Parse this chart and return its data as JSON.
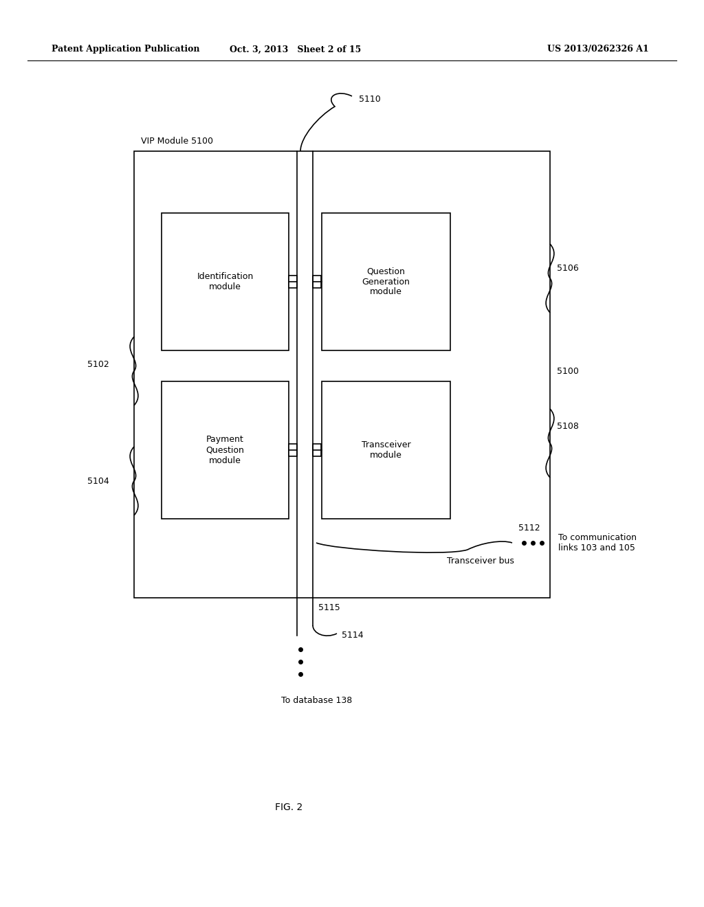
{
  "header_left": "Patent Application Publication",
  "header_mid": "Oct. 3, 2013   Sheet 2 of 15",
  "header_right": "US 2013/0262326 A1",
  "fig_label": "FIG. 2",
  "bg_color": "#ffffff",
  "line_color": "#000000",
  "label_vip": "VIP Module 5100",
  "label_5100": "5100",
  "label_5102": "5102",
  "label_5104": "5104",
  "label_5106": "5106",
  "label_5108": "5108",
  "label_5110": "5110",
  "label_5112": "5112",
  "label_5114": "5114",
  "label_5115": "5115",
  "label_transceiver_bus": "Transceiver bus",
  "label_comm_links": "To communication\nlinks 103 and 105",
  "label_database": "To database 138",
  "text_id": "Identification\nmodule",
  "text_pq": "Payment\nQuestion\nmodule",
  "text_qg": "Question\nGeneration\nmodule",
  "text_tr": "Transceiver\nmodule"
}
